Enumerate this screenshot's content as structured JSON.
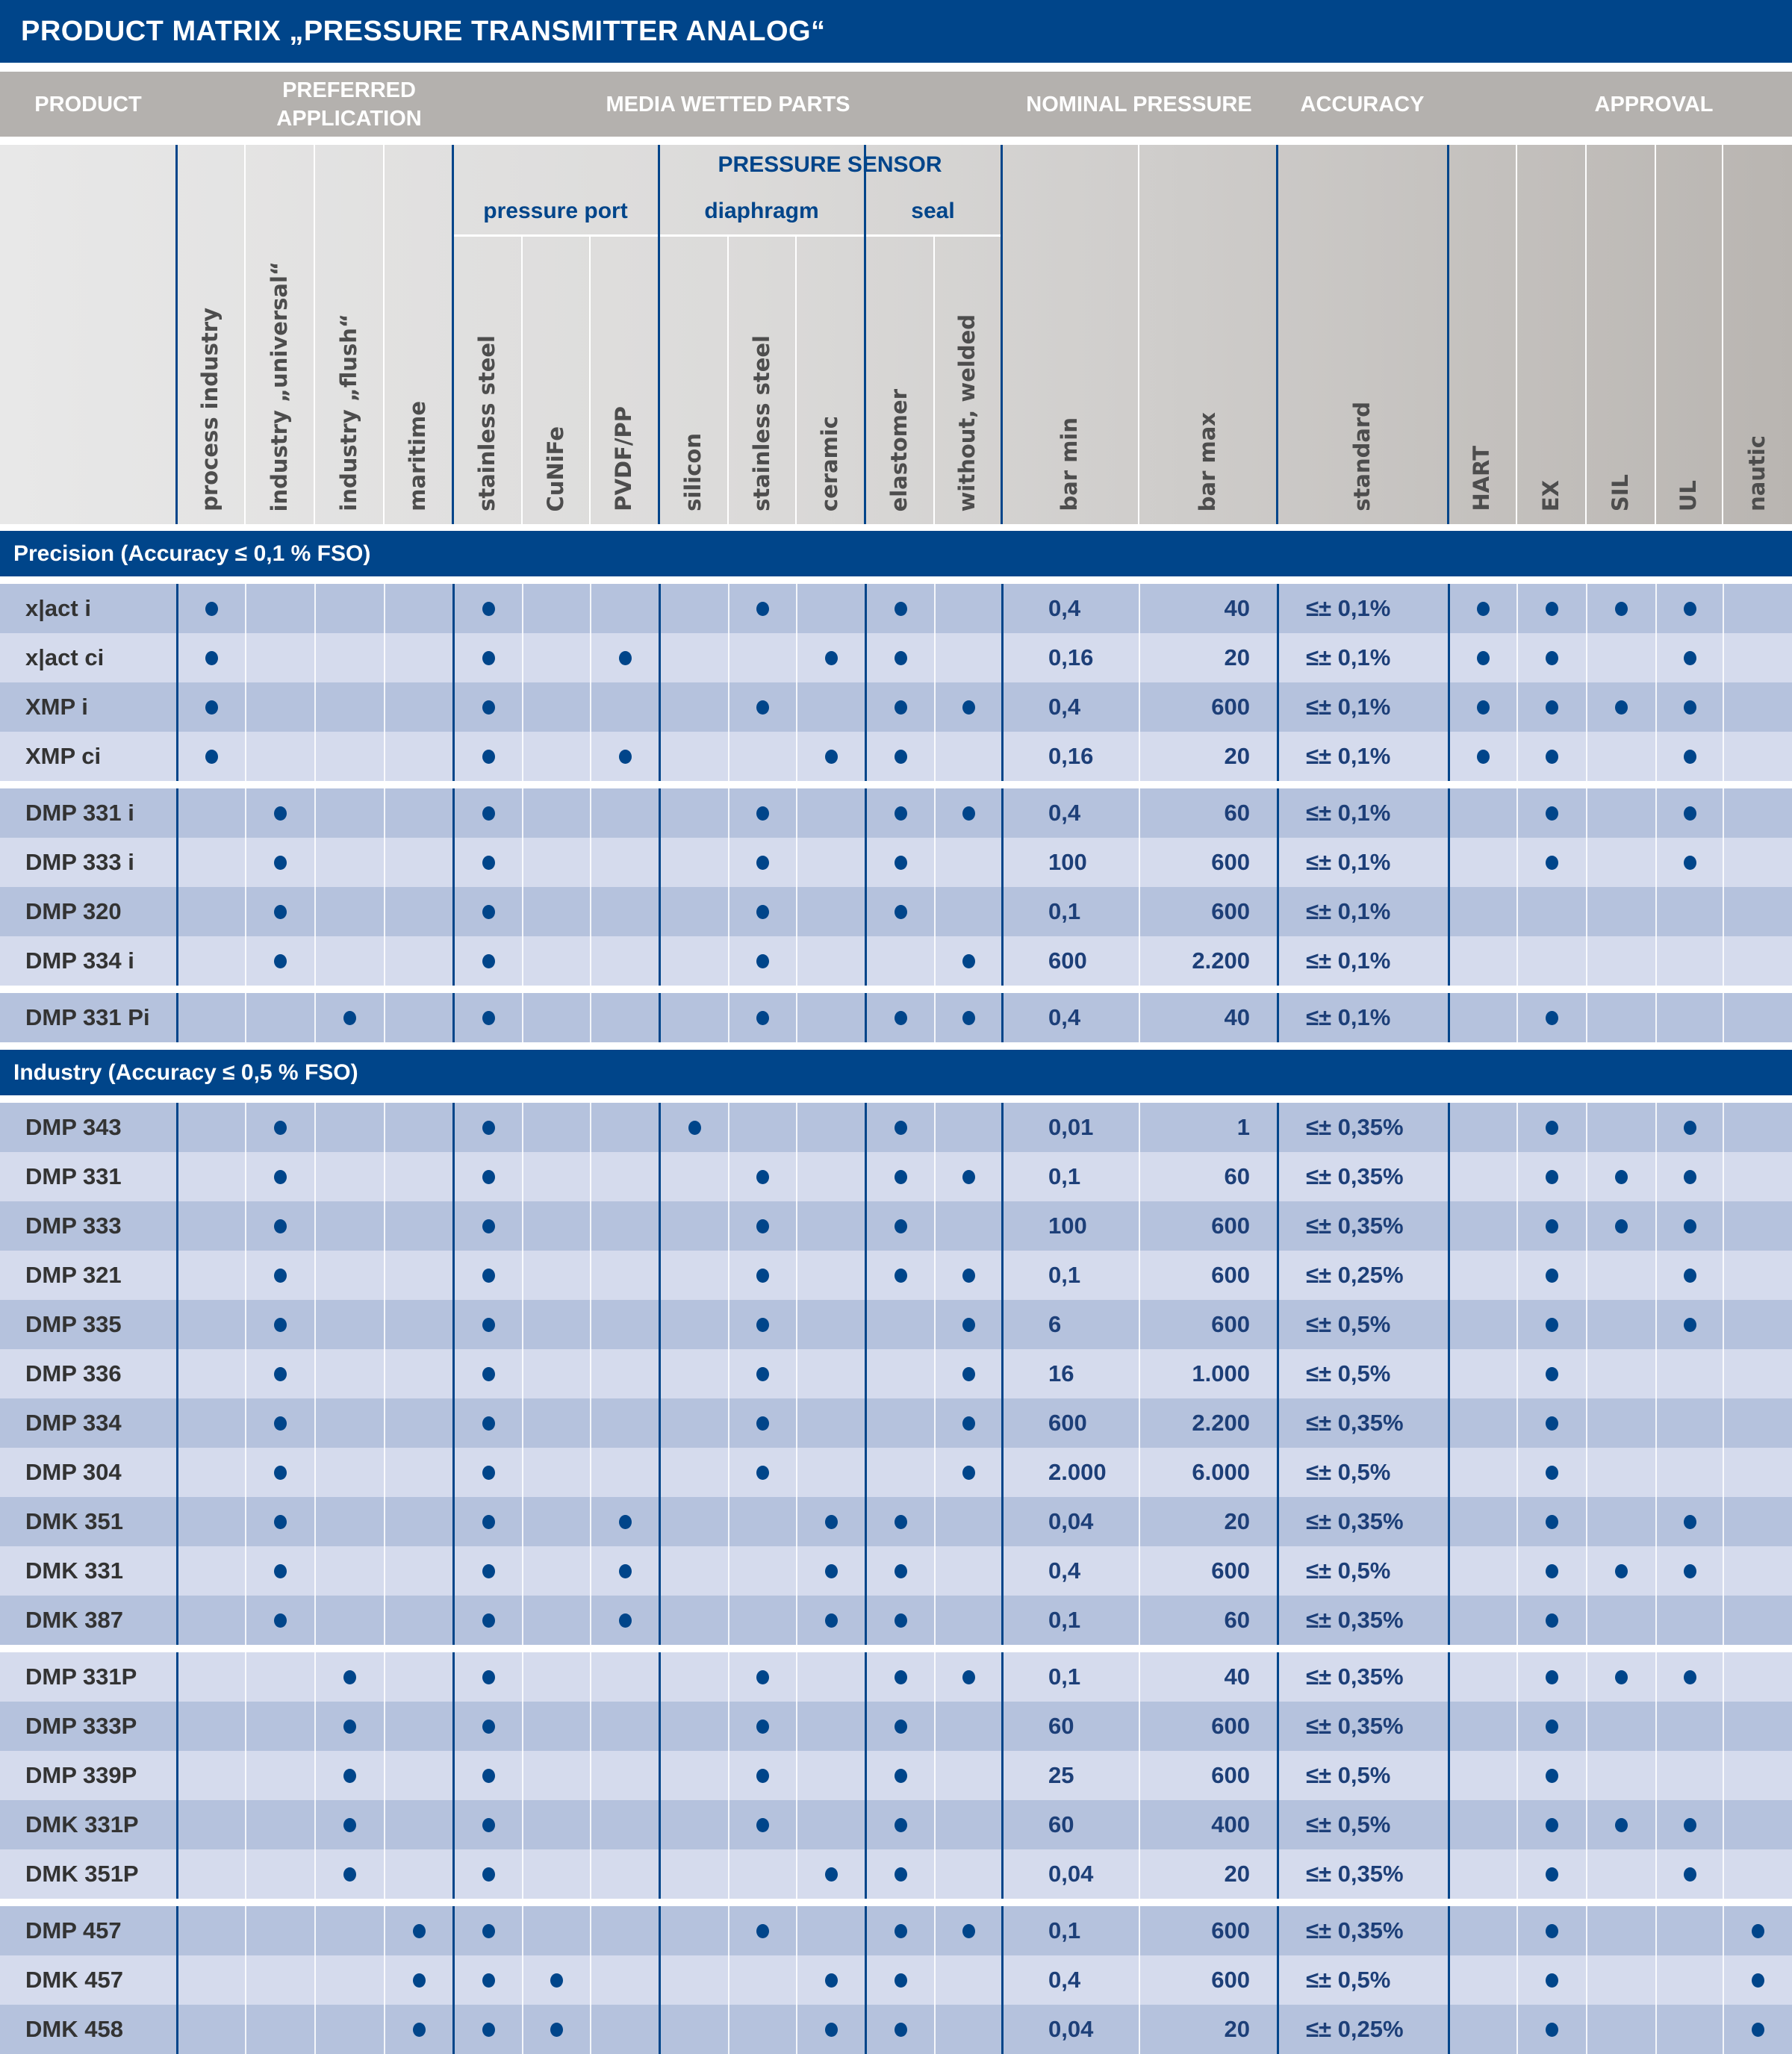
{
  "title": "PRODUCT MATRIX „PRESSURE TRANSMITTER ANALOG“",
  "group_headers": {
    "product": "PRODUCT",
    "preferred_application": "PREFERRED APPLICATION",
    "media_wetted_parts": "MEDIA WETTED PARTS",
    "nominal_pressure": "NOMINAL PRESSURE",
    "accuracy": "ACCURACY",
    "approval": "APPROVAL"
  },
  "sub_headers": {
    "pressure_sensor": "PRESSURE SENSOR",
    "pressure_port": "pressure port",
    "diaphragm": "diaphragm",
    "seal": "seal"
  },
  "columns": [
    "process industry",
    "industry „universal“",
    "industry „flush“",
    "maritime",
    "stainless steel",
    "CuNiFe",
    "PVDF/PP",
    "silicon",
    "stainless steel",
    "ceramic",
    "elastomer",
    "without, welded",
    "bar min",
    "bar max",
    "standard",
    "HART",
    "EX",
    "SIL",
    "UL",
    "nautic"
  ],
  "colors": {
    "brand_blue": "#00458a",
    "row_dark": "#b5c2dd",
    "row_light": "#d5dbed",
    "header_gray": "#b4b1ae"
  },
  "sections": [
    {
      "title": "Precision (Accuracy ≤ 0,1 % FSO)",
      "groups": [
        [
          {
            "name": "x|act i",
            "f": [
              0,
              4,
              8,
              10
            ],
            "min": "0,4",
            "max": "40",
            "acc": "≤± 0,1%",
            "a": [
              0,
              1,
              2,
              3
            ]
          },
          {
            "name": "x|act ci",
            "f": [
              0,
              4,
              6,
              9,
              10
            ],
            "min": "0,16",
            "max": "20",
            "acc": "≤± 0,1%",
            "a": [
              0,
              1,
              3
            ]
          },
          {
            "name": "XMP i",
            "f": [
              0,
              4,
              8,
              10,
              11
            ],
            "min": "0,4",
            "max": "600",
            "acc": "≤± 0,1%",
            "a": [
              0,
              1,
              2,
              3
            ]
          },
          {
            "name": "XMP ci",
            "f": [
              0,
              4,
              6,
              9,
              10
            ],
            "min": "0,16",
            "max": "20",
            "acc": "≤± 0,1%",
            "a": [
              0,
              1,
              3
            ]
          }
        ],
        [
          {
            "name": "DMP 331 i",
            "f": [
              1,
              4,
              8,
              10,
              11
            ],
            "min": "0,4",
            "max": "60",
            "acc": "≤± 0,1%",
            "a": [
              1,
              3
            ]
          },
          {
            "name": "DMP 333 i",
            "f": [
              1,
              4,
              8,
              10
            ],
            "min": "100",
            "max": "600",
            "acc": "≤± 0,1%",
            "a": [
              1,
              3
            ]
          },
          {
            "name": "DMP 320",
            "f": [
              1,
              4,
              8,
              10
            ],
            "min": "0,1",
            "max": "600",
            "acc": "≤± 0,1%",
            "a": []
          },
          {
            "name": "DMP 334 i",
            "f": [
              1,
              4,
              8,
              11
            ],
            "min": "600",
            "max": "2.200",
            "acc": "≤± 0,1%",
            "a": []
          }
        ],
        [
          {
            "name": "DMP 331 Pi",
            "f": [
              2,
              4,
              8,
              10,
              11
            ],
            "min": "0,4",
            "max": "40",
            "acc": "≤± 0,1%",
            "a": [
              1
            ]
          }
        ]
      ]
    },
    {
      "title": "Industry (Accuracy ≤ 0,5 % FSO)",
      "groups": [
        [
          {
            "name": "DMP 343",
            "f": [
              1,
              4,
              7,
              10
            ],
            "min": "0,01",
            "max": "1",
            "acc": "≤± 0,35%",
            "a": [
              1,
              3
            ]
          },
          {
            "name": "DMP 331",
            "f": [
              1,
              4,
              8,
              10,
              11
            ],
            "min": "0,1",
            "max": "60",
            "acc": "≤± 0,35%",
            "a": [
              1,
              2,
              3
            ]
          },
          {
            "name": "DMP 333",
            "f": [
              1,
              4,
              8,
              10
            ],
            "min": "100",
            "max": "600",
            "acc": "≤± 0,35%",
            "a": [
              1,
              2,
              3
            ]
          },
          {
            "name": "DMP 321",
            "f": [
              1,
              4,
              8,
              10,
              11
            ],
            "min": "0,1",
            "max": "600",
            "acc": "≤± 0,25%",
            "a": [
              1,
              3
            ]
          },
          {
            "name": "DMP 335",
            "f": [
              1,
              4,
              8,
              11
            ],
            "min": "6",
            "max": "600",
            "acc": "≤± 0,5%",
            "a": [
              1,
              3
            ]
          },
          {
            "name": "DMP 336",
            "f": [
              1,
              4,
              8,
              11
            ],
            "min": "16",
            "max": "1.000",
            "acc": "≤± 0,5%",
            "a": [
              1
            ]
          },
          {
            "name": "DMP 334",
            "f": [
              1,
              4,
              8,
              11
            ],
            "min": "600",
            "max": "2.200",
            "acc": "≤± 0,35%",
            "a": [
              1
            ]
          },
          {
            "name": "DMP 304",
            "f": [
              1,
              4,
              8,
              11
            ],
            "min": "2.000",
            "max": "6.000",
            "acc": "≤± 0,5%",
            "a": [
              1
            ]
          },
          {
            "name": "DMK 351",
            "f": [
              1,
              4,
              6,
              9,
              10
            ],
            "min": "0,04",
            "max": "20",
            "acc": "≤± 0,35%",
            "a": [
              1,
              3
            ]
          },
          {
            "name": "DMK 331",
            "f": [
              1,
              4,
              6,
              9,
              10
            ],
            "min": "0,4",
            "max": "600",
            "acc": "≤± 0,5%",
            "a": [
              1,
              2,
              3
            ]
          },
          {
            "name": "DMK 387",
            "f": [
              1,
              4,
              6,
              9,
              10
            ],
            "min": "0,1",
            "max": "60",
            "acc": "≤± 0,35%",
            "a": [
              1
            ]
          }
        ],
        [
          {
            "name": "DMP 331P",
            "f": [
              2,
              4,
              8,
              10,
              11
            ],
            "min": "0,1",
            "max": "40",
            "acc": "≤± 0,35%",
            "a": [
              1,
              2,
              3
            ]
          },
          {
            "name": "DMP 333P",
            "f": [
              2,
              4,
              8,
              10
            ],
            "min": "60",
            "max": "600",
            "acc": "≤± 0,35%",
            "a": [
              1
            ]
          },
          {
            "name": "DMP 339P",
            "f": [
              2,
              4,
              8,
              10
            ],
            "min": "25",
            "max": "600",
            "acc": "≤± 0,5%",
            "a": [
              1
            ]
          },
          {
            "name": "DMK 331P",
            "f": [
              2,
              4,
              8,
              10
            ],
            "min": "60",
            "max": "400",
            "acc": "≤± 0,5%",
            "a": [
              1,
              2,
              3
            ]
          },
          {
            "name": "DMK 351P",
            "f": [
              2,
              4,
              9,
              10
            ],
            "min": "0,04",
            "max": "20",
            "acc": "≤± 0,35%",
            "a": [
              1,
              3
            ]
          }
        ],
        [
          {
            "name": "DMP 457",
            "f": [
              3,
              4,
              8,
              10,
              11
            ],
            "min": "0,1",
            "max": "600",
            "acc": "≤± 0,35%",
            "a": [
              1,
              4
            ]
          },
          {
            "name": "DMK 457",
            "f": [
              3,
              4,
              5,
              9,
              10
            ],
            "min": "0,4",
            "max": "600",
            "acc": "≤± 0,5%",
            "a": [
              1,
              4
            ]
          },
          {
            "name": "DMK 458",
            "f": [
              3,
              4,
              5,
              9,
              10
            ],
            "min": "0,04",
            "max": "20",
            "acc": "≤± 0,25%",
            "a": [
              1,
              4
            ]
          }
        ]
      ]
    }
  ]
}
